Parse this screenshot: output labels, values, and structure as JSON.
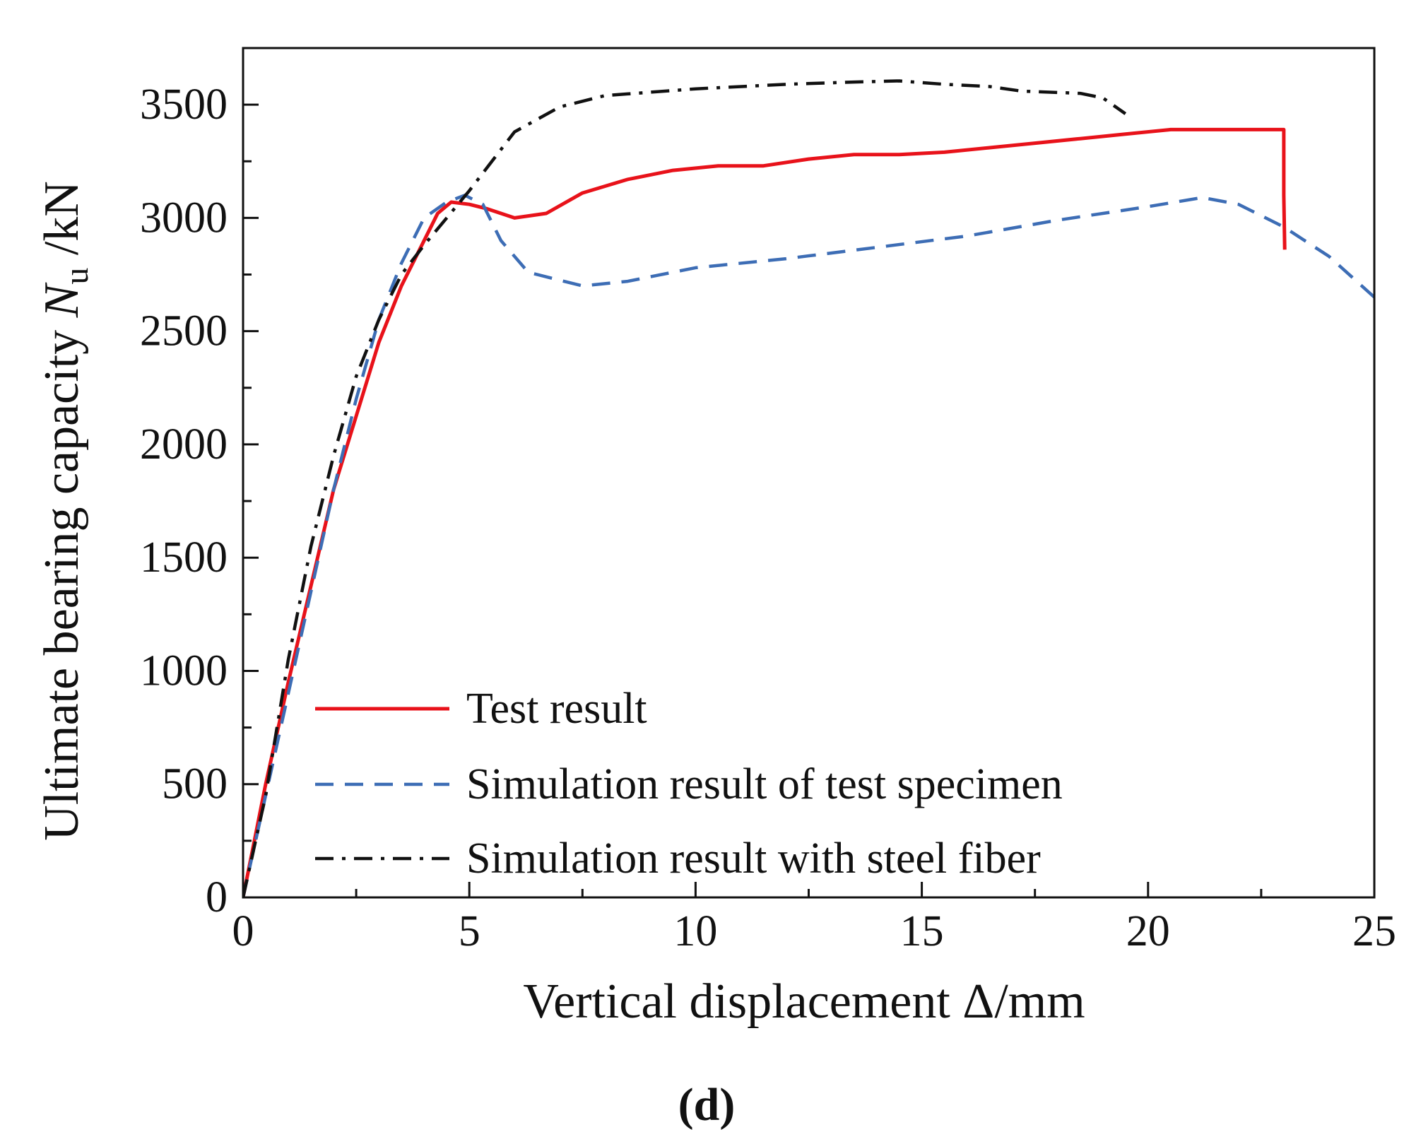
{
  "chart_data": {
    "type": "line",
    "xlabel": {
      "prefix": "Vertical displacement ",
      "symbol": "Δ",
      "suffix": "/mm"
    },
    "ylabel": {
      "prefix": "Ultimate bearing capacity ",
      "symbol": "N",
      "subscript": "u",
      "suffix": " /kN"
    },
    "xlim": [
      0,
      25
    ],
    "ylim": [
      0,
      3750
    ],
    "xticks": [
      0,
      5,
      10,
      15,
      20,
      25
    ],
    "yticks": [
      0,
      500,
      1000,
      1500,
      2000,
      2500,
      3000,
      3500
    ],
    "grid": false,
    "legend_position": "lower-center",
    "panel_label": "d",
    "series": [
      {
        "name": "Test result",
        "color": "#e8121a",
        "style": "solid",
        "points": [
          [
            0,
            0
          ],
          [
            0.5,
            500
          ],
          [
            1,
            950
          ],
          [
            2,
            1800
          ],
          [
            3,
            2450
          ],
          [
            3.5,
            2700
          ],
          [
            4,
            2900
          ],
          [
            4.3,
            3020
          ],
          [
            4.6,
            3070
          ],
          [
            5,
            3060
          ],
          [
            5.4,
            3040
          ],
          [
            6,
            3000
          ],
          [
            6.7,
            3020
          ],
          [
            7.5,
            3110
          ],
          [
            8.5,
            3170
          ],
          [
            9.5,
            3210
          ],
          [
            10.5,
            3230
          ],
          [
            11.5,
            3230
          ],
          [
            12.5,
            3260
          ],
          [
            13.5,
            3280
          ],
          [
            14.5,
            3280
          ],
          [
            15.5,
            3290
          ],
          [
            16.5,
            3310
          ],
          [
            17.5,
            3330
          ],
          [
            18.5,
            3350
          ],
          [
            19.5,
            3370
          ],
          [
            20.5,
            3390
          ],
          [
            23,
            3390
          ],
          [
            23,
            3100
          ],
          [
            23.02,
            2860
          ]
        ]
      },
      {
        "name": "Simulation result of test specimen",
        "color": "#3d6db5",
        "style": "dashed",
        "points": [
          [
            0,
            0
          ],
          [
            0.5,
            450
          ],
          [
            1,
            900
          ],
          [
            1.5,
            1350
          ],
          [
            2,
            1800
          ],
          [
            2.5,
            2200
          ],
          [
            3,
            2550
          ],
          [
            3.5,
            2800
          ],
          [
            4,
            3000
          ],
          [
            4.5,
            3070
          ],
          [
            4.9,
            3100
          ],
          [
            5.3,
            3060
          ],
          [
            5.7,
            2900
          ],
          [
            6.3,
            2760
          ],
          [
            7.5,
            2700
          ],
          [
            8.5,
            2720
          ],
          [
            10,
            2780
          ],
          [
            12,
            2820
          ],
          [
            14,
            2870
          ],
          [
            16,
            2920
          ],
          [
            18,
            2990
          ],
          [
            20,
            3050
          ],
          [
            21.2,
            3090
          ],
          [
            22,
            3060
          ],
          [
            23,
            2960
          ],
          [
            24,
            2830
          ],
          [
            25,
            2650
          ]
        ]
      },
      {
        "name": "Simulation result with steel fiber",
        "color": "#111111",
        "style": "dashdot",
        "points": [
          [
            0,
            0
          ],
          [
            0.5,
            450
          ],
          [
            1,
            1050
          ],
          [
            1.5,
            1550
          ],
          [
            2,
            1950
          ],
          [
            2.5,
            2300
          ],
          [
            3,
            2550
          ],
          [
            3.5,
            2750
          ],
          [
            4,
            2880
          ],
          [
            4.5,
            3000
          ],
          [
            5,
            3120
          ],
          [
            5.5,
            3250
          ],
          [
            6,
            3380
          ],
          [
            7,
            3490
          ],
          [
            8,
            3540
          ],
          [
            10,
            3570
          ],
          [
            12,
            3590
          ],
          [
            13.5,
            3600
          ],
          [
            14.5,
            3605
          ],
          [
            15.5,
            3590
          ],
          [
            16.5,
            3580
          ],
          [
            17.2,
            3560
          ],
          [
            18.5,
            3550
          ],
          [
            19,
            3530
          ],
          [
            19.5,
            3460
          ]
        ]
      }
    ]
  }
}
